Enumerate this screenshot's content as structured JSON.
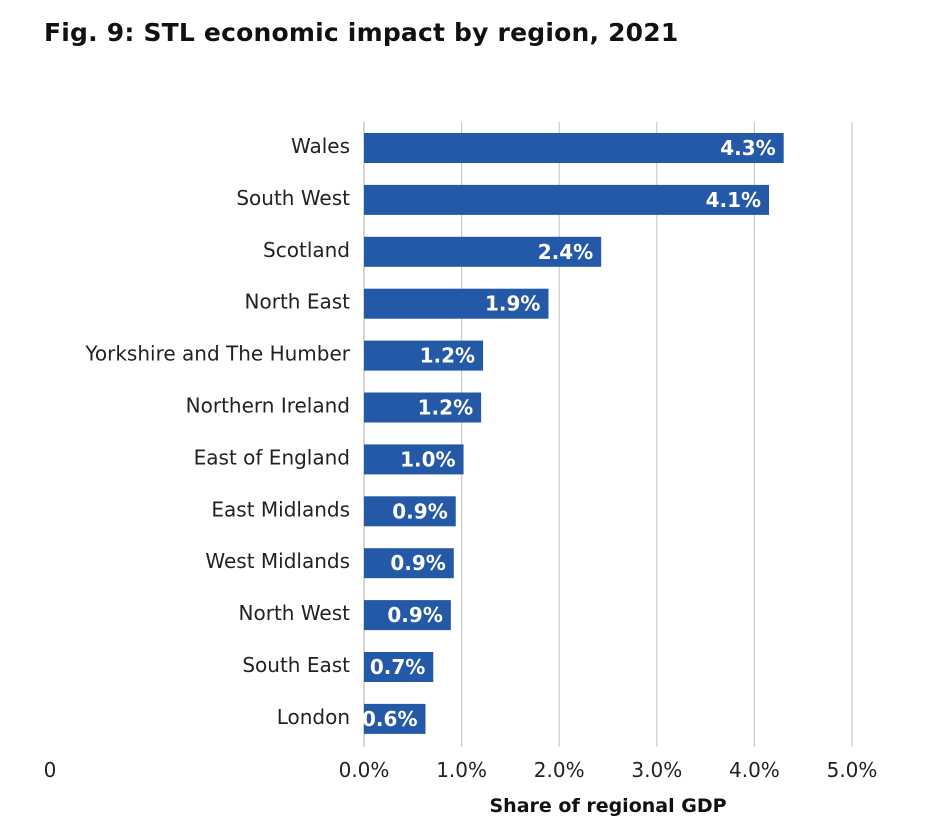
{
  "chart_data": {
    "type": "bar",
    "orientation": "horizontal",
    "title": "Fig. 9: STL economic impact by region, 2021",
    "xlabel": "Share of regional GDP",
    "ylabel": "",
    "categories": [
      "Wales",
      "South West",
      "Scotland",
      "North East",
      "Yorkshire and The Humber",
      "Northern Ireland",
      "East of England",
      "East Midlands",
      "West Midlands",
      "North West",
      "South East",
      "London"
    ],
    "values": [
      4.3,
      4.15,
      2.43,
      1.89,
      1.22,
      1.2,
      1.02,
      0.94,
      0.92,
      0.89,
      0.71,
      0.63
    ],
    "value_labels": [
      "4.3%",
      "4.1%",
      "2.4%",
      "1.9%",
      "1.2%",
      "1.2%",
      "1.0%",
      "0.9%",
      "0.9%",
      "0.9%",
      "0.7%",
      "0.6%"
    ],
    "xlim": [
      0,
      5
    ],
    "xticks": [
      0,
      1,
      2,
      3,
      4,
      5
    ],
    "xtick_labels": [
      "0.0%",
      "1.0%",
      "2.0%",
      "3.0%",
      "4.0%",
      "5.0%"
    ],
    "stray_label": "0",
    "grid": "vertical",
    "legend": "none",
    "bar_color": "#2459a8",
    "grid_color": "#cccccc"
  }
}
